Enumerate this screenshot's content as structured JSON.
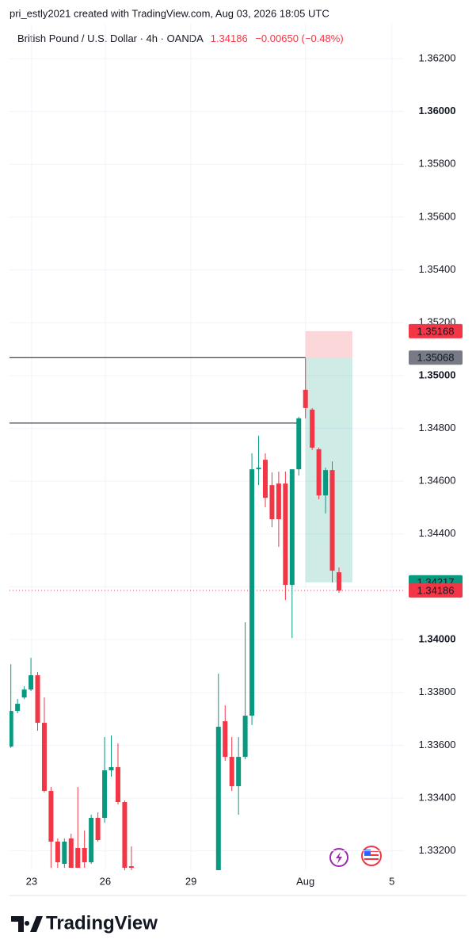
{
  "header": {
    "attribution": "pri_estly2021 created with TradingView.com, Aug 03, 2026 18:05 UTC",
    "symbol": "British Pound / U.S. Dollar · 4h · OANDA",
    "change": "−0.00650 (−0.48%)"
  },
  "footer": {
    "brand": "TradingView"
  },
  "chart_data": {
    "type": "candlestick",
    "up_color": "#089981",
    "down_color": "#f23645",
    "grid": true,
    "x": [
      0,
      1,
      2,
      3,
      4,
      5,
      6,
      7,
      8,
      9,
      10,
      11,
      12,
      13,
      14,
      15,
      16,
      17,
      18,
      31,
      32,
      33,
      34,
      35,
      36,
      37,
      38,
      39,
      40,
      41,
      42,
      43,
      44,
      45,
      46,
      47,
      48,
      49
    ],
    "open": [
      1.33595,
      1.3373,
      1.33781,
      1.33811,
      1.33865,
      1.33685,
      1.33427,
      1.33235,
      1.33151,
      1.33247,
      1.33211,
      1.33211,
      1.33157,
      1.33325,
      1.33325,
      1.33505,
      1.33517,
      1.33385,
      1.33142,
      1.331,
      1.33691,
      1.33556,
      1.33445,
      1.33556,
      1.33712,
      1.34645,
      1.34681,
      1.34585,
      1.34591,
      1.34591,
      1.34207,
      1.34645,
      1.34946,
      1.34871,
      1.34721,
      1.34546,
      1.34642,
      1.34255
    ],
    "high": [
      1.33907,
      1.33775,
      1.33823,
      1.33931,
      1.33877,
      1.33781,
      1.33442,
      1.33247,
      1.33247,
      1.33265,
      1.33442,
      1.33277,
      1.33337,
      1.33346,
      1.33631,
      1.33637,
      1.33607,
      1.33391,
      1.33217,
      1.33871,
      1.33751,
      1.33631,
      1.33631,
      1.34066,
      1.34705,
      1.34772,
      1.34705,
      1.34633,
      1.34636,
      1.34636,
      1.34645,
      1.34844,
      1.35066,
      1.34877,
      1.34727,
      1.34651,
      1.34675,
      1.34273
    ],
    "low": [
      1.3359,
      1.33721,
      1.33775,
      1.33805,
      1.33655,
      1.33421,
      1.33136,
      1.33136,
      1.33136,
      1.33136,
      1.33136,
      1.33136,
      1.33151,
      1.33235,
      1.33307,
      1.33481,
      1.33376,
      1.33127,
      1.33127,
      1.3305,
      1.33541,
      1.33427,
      1.33337,
      1.33547,
      1.33676,
      1.34585,
      1.34501,
      1.34426,
      1.34351,
      1.3415,
      1.34006,
      1.34621,
      1.34838,
      1.34718,
      1.34531,
      1.34478,
      1.34216,
      1.34177
    ],
    "close": [
      1.3373,
      1.33757,
      1.33811,
      1.33865,
      1.33685,
      1.33427,
      1.33235,
      1.33157,
      1.33235,
      1.33136,
      1.33136,
      1.33157,
      1.33325,
      1.33241,
      1.33505,
      1.33517,
      1.33385,
      1.33136,
      1.33136,
      1.3367,
      1.33556,
      1.33445,
      1.33556,
      1.33712,
      1.34645,
      1.34651,
      1.34537,
      1.34456,
      1.34456,
      1.34207,
      1.34645,
      1.34838,
      1.34877,
      1.34727,
      1.34546,
      1.34642,
      1.34261,
      1.34186
    ],
    "xlim": [
      -0.2,
      58.7
    ],
    "xticks": [
      {
        "value": 3.1,
        "label": "23"
      },
      {
        "value": 14.1,
        "label": "26"
      },
      {
        "value": 26.9,
        "label": "29"
      },
      {
        "value": 44,
        "label": "Aug"
      },
      {
        "value": 56.9,
        "label": "5"
      }
    ],
    "ylim": [
      1.33127,
      1.36332
    ],
    "yticks": [
      {
        "value": 1.332,
        "label": "1.33200"
      },
      {
        "value": 1.334,
        "label": "1.33400"
      },
      {
        "value": 1.336,
        "label": "1.33600"
      },
      {
        "value": 1.338,
        "label": "1.33800"
      },
      {
        "value": 1.34,
        "label": "1.34000"
      },
      {
        "value": 1.342,
        "label": "1.34200"
      },
      {
        "value": 1.344,
        "label": "1.34400"
      },
      {
        "value": 1.346,
        "label": "1.34600"
      },
      {
        "value": 1.348,
        "label": "1.34800"
      },
      {
        "value": 1.35,
        "label": "1.35000"
      },
      {
        "value": 1.352,
        "label": "1.35200"
      },
      {
        "value": 1.354,
        "label": "1.35400"
      },
      {
        "value": 1.356,
        "label": "1.35600"
      },
      {
        "value": 1.358,
        "label": "1.35800"
      },
      {
        "value": 1.36,
        "label": "1.36000"
      },
      {
        "value": 1.362,
        "label": "1.36200"
      }
    ],
    "hlines": [
      {
        "value": 1.35068,
        "x_end": 44
      },
      {
        "value": 1.3482,
        "x_end": 42.8
      }
    ],
    "position": {
      "x_start": 44,
      "x_end": 51,
      "stop": 1.35168,
      "entry": 1.35068,
      "target": 1.34217,
      "stop_color": "#f23645",
      "entry_color": "#787b86",
      "target_color": "#089981"
    }
  }
}
